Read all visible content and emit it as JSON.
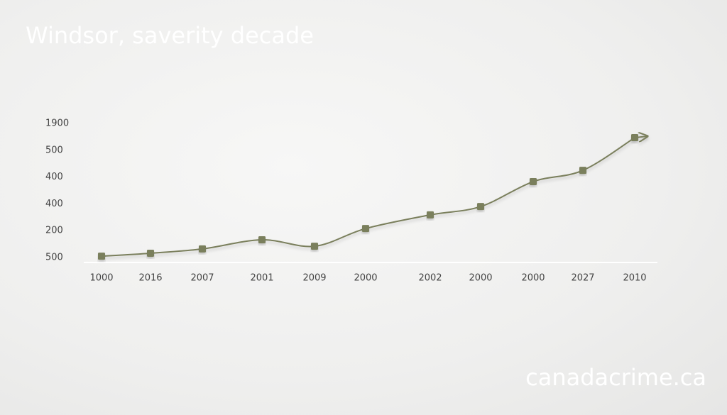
{
  "chart_data": {
    "type": "line",
    "title": "Windsor, saverity decade",
    "watermark": "canadacrime.ca",
    "categories": [
      "1000",
      "2016",
      "2007",
      "2001",
      "2009",
      "2000",
      "2002",
      "2000",
      "2000",
      "2027",
      "2010"
    ],
    "series": [
      {
        "name": "series",
        "color": "#7a7f5c",
        "values": [
          0.05,
          0.16,
          0.32,
          0.66,
          0.42,
          1.08,
          1.59,
          1.9,
          2.83,
          3.25,
          4.47
        ]
      }
    ],
    "ylim": [
      0,
      5
    ],
    "yticks": [
      {
        "value": 0,
        "label": "500"
      },
      {
        "value": 1,
        "label": "200"
      },
      {
        "value": 2,
        "label": "400"
      },
      {
        "value": 3,
        "label": "400"
      },
      {
        "value": 4,
        "label": "500"
      },
      {
        "value": 5,
        "label": "1900"
      }
    ]
  }
}
